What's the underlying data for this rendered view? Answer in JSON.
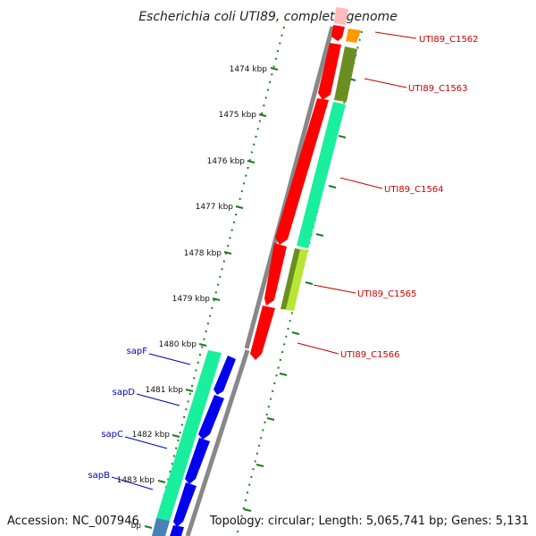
{
  "title": "Escherichia coli UTI89, complete genome",
  "footer": {
    "accession": "Accession: NC_007946",
    "summary": "Topology: circular; Length: 5,065,741 bp; Genes: 5,131"
  },
  "ticks": [
    {
      "label": "1474 kbp"
    },
    {
      "label": "1475 kbp"
    },
    {
      "label": "1476 kbp"
    },
    {
      "label": "1477 kbp"
    },
    {
      "label": "1478 kbp"
    },
    {
      "label": "1479 kbp"
    },
    {
      "label": "1480 kbp"
    },
    {
      "label": "1481 kbp"
    },
    {
      "label": "1482 kbp"
    },
    {
      "label": "1483 kbp"
    },
    {
      "label": "bp"
    }
  ],
  "genes_right": [
    {
      "name": "UTI89_C1562",
      "color": "#cc0000"
    },
    {
      "name": "UTI89_C1563",
      "color": "#cc0000"
    },
    {
      "name": "UTI89_C1564",
      "color": "#cc0000"
    },
    {
      "name": "UTI89_C1565",
      "color": "#cc0000"
    },
    {
      "name": "UTI89_C1566",
      "color": "#cc0000"
    }
  ],
  "genes_left": [
    {
      "name": "sapF",
      "color": "#0000bb"
    },
    {
      "name": "sapD",
      "color": "#0000bb"
    },
    {
      "name": "sapC",
      "color": "#0000bb"
    },
    {
      "name": "sapB",
      "color": "#0000bb"
    }
  ],
  "colors": {
    "backbone": "#888888",
    "tick": "#1f7a1f",
    "cds_red": "#ff0000",
    "cds_blue": "#0000ee",
    "rna_green": "#1aef9e",
    "olive": "#6b8e23",
    "lime": "#b8e633",
    "orange": "#ff9900",
    "pink": "#ffbbbb"
  }
}
